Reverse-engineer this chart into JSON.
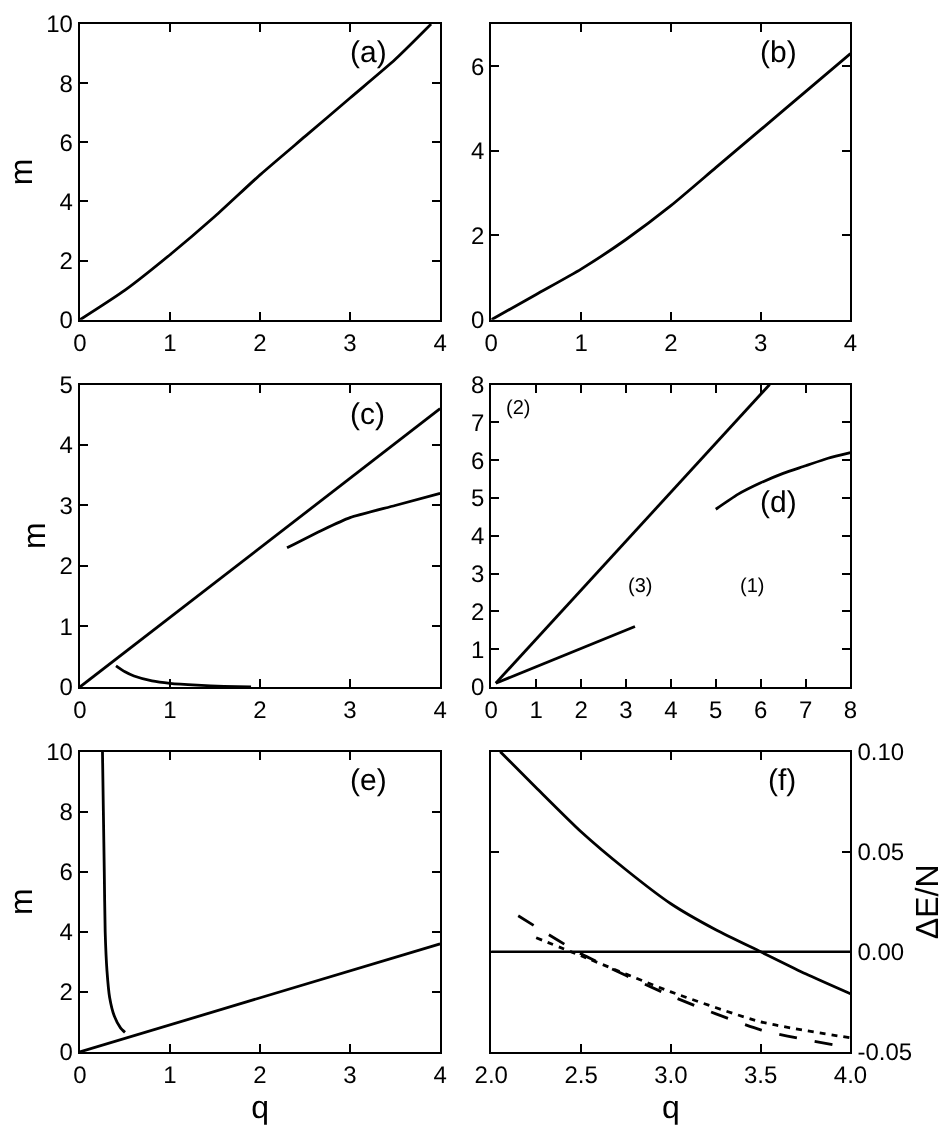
{
  "chart_data": [
    {
      "type": "line",
      "title": "(a)",
      "ylabel": "m",
      "xlim": [
        0,
        4
      ],
      "ylim": [
        0,
        10
      ],
      "xticks": [
        0,
        1,
        2,
        3,
        4
      ],
      "yticks": [
        0,
        2,
        4,
        6,
        8,
        10
      ],
      "marker": "none",
      "line_style": "solid",
      "series": [
        {
          "color": "#000000",
          "x": [
            0,
            0.5,
            1,
            1.5,
            2,
            2.5,
            3,
            3.5,
            3.9
          ],
          "values": [
            0,
            1,
            2.2,
            3.5,
            4.9,
            6.2,
            7.5,
            8.8,
            10
          ]
        }
      ]
    },
    {
      "type": "line",
      "title": "(b)",
      "xlim": [
        0,
        4
      ],
      "ylim": [
        0,
        7
      ],
      "xticks": [
        0,
        1,
        2,
        3,
        4
      ],
      "yticks": [
        0,
        2,
        4,
        6
      ],
      "marker": "none",
      "line_style": "solid",
      "series": [
        {
          "color": "#000000",
          "x": [
            0,
            0.5,
            1,
            1.5,
            2,
            2.5,
            3,
            3.5,
            4
          ],
          "values": [
            0,
            0.6,
            1.2,
            1.9,
            2.7,
            3.6,
            4.5,
            5.4,
            6.3
          ]
        }
      ]
    },
    {
      "type": "line",
      "title": "(c)",
      "ylabel": "m",
      "xlim": [
        0,
        4
      ],
      "ylim": [
        0,
        5
      ],
      "xticks": [
        0,
        1,
        2,
        3,
        4
      ],
      "yticks": [
        0,
        1,
        2,
        3,
        4,
        5
      ],
      "marker": "none",
      "line_style": "solid",
      "series": [
        {
          "color": "#000000",
          "x": [
            0,
            4
          ],
          "values": [
            0,
            4.6
          ]
        },
        {
          "color": "#000000",
          "x": [
            2.3,
            2.7,
            3,
            3.5,
            4
          ],
          "values": [
            2.3,
            2.6,
            2.8,
            3.0,
            3.2
          ]
        },
        {
          "color": "#000000",
          "x": [
            0.4,
            0.5,
            0.6,
            0.8,
            1,
            1.3,
            1.6,
            1.9
          ],
          "values": [
            0.35,
            0.25,
            0.18,
            0.1,
            0.06,
            0.03,
            0.01,
            0
          ]
        }
      ]
    },
    {
      "type": "line",
      "title": "(d)",
      "xlim": [
        0,
        8
      ],
      "ylim": [
        0,
        8
      ],
      "xticks": [
        0,
        1,
        2,
        3,
        4,
        5,
        6,
        7,
        8
      ],
      "yticks": [
        0,
        1,
        2,
        3,
        4,
        5,
        6,
        7,
        8
      ],
      "marker": "none",
      "line_style": "solid",
      "annotations": [
        "(2)",
        "(3)",
        "(1)"
      ],
      "series": [
        {
          "color": "#000000",
          "x": [
            0.1,
            6.2
          ],
          "values": [
            0.1,
            8
          ]
        },
        {
          "color": "#000000",
          "x": [
            5,
            5.5,
            6,
            6.5,
            7,
            7.5,
            8
          ],
          "values": [
            4.7,
            5.1,
            5.4,
            5.65,
            5.85,
            6.05,
            6.2
          ]
        },
        {
          "color": "#000000",
          "x": [
            0.1,
            3.2
          ],
          "values": [
            0.1,
            1.6
          ]
        }
      ]
    },
    {
      "type": "line",
      "title": "(e)",
      "xlabel": "q",
      "ylabel": "m",
      "xlim": [
        0,
        4
      ],
      "ylim": [
        0,
        10
      ],
      "xticks": [
        0,
        1,
        2,
        3,
        4
      ],
      "yticks": [
        0,
        2,
        4,
        6,
        8,
        10
      ],
      "marker": "none",
      "line_style": "solid",
      "series": [
        {
          "color": "#000000",
          "x": [
            0,
            4
          ],
          "values": [
            0,
            3.6
          ]
        },
        {
          "color": "#000000",
          "x": [
            0.25,
            0.26,
            0.27,
            0.28,
            0.3,
            0.33,
            0.38,
            0.45,
            0.5
          ],
          "values": [
            10,
            8,
            6,
            4,
            2.7,
            1.8,
            1.2,
            0.8,
            0.65
          ]
        }
      ]
    },
    {
      "type": "line",
      "title": "(f)",
      "xlabel": "q",
      "y2label": "ΔE/N",
      "xlim": [
        2.0,
        4.0
      ],
      "y2lim": [
        -0.05,
        0.1
      ],
      "xticks": [
        {
          "value": 2,
          "label": "2.0"
        },
        {
          "value": 2.5,
          "label": "2.5"
        },
        {
          "value": 3,
          "label": "3.0"
        },
        {
          "value": 3.5,
          "label": "3.5"
        },
        {
          "value": 4,
          "label": "4.0"
        }
      ],
      "y2ticks": [
        {
          "value": -0.05,
          "label": "-0.05"
        },
        {
          "value": 0,
          "label": "0.00"
        },
        {
          "value": 0.05,
          "label": "0.05"
        },
        {
          "value": 0.1,
          "label": "0.10"
        }
      ],
      "marker": "none",
      "ref_lines": [
        {
          "axis": "y2",
          "value": 0,
          "color": "#000000"
        }
      ],
      "series": [
        {
          "axis": "y2",
          "color": "#000000",
          "line_style": "solid",
          "x": [
            2.05,
            2.25,
            2.5,
            2.75,
            3,
            3.25,
            3.5,
            3.75,
            4
          ],
          "values": [
            0.1,
            0.082,
            0.06,
            0.041,
            0.024,
            0.011,
            0.0,
            -0.011,
            -0.021
          ]
        },
        {
          "axis": "y2",
          "color": "#000000",
          "line_style": "dashed",
          "x": [
            2.15,
            2.5,
            3,
            3.5,
            4
          ],
          "values": [
            0.018,
            -0.001,
            -0.022,
            -0.039,
            -0.048
          ]
        },
        {
          "axis": "y2",
          "color": "#000000",
          "line_style": "dotted",
          "x": [
            2.25,
            2.5,
            3,
            3.5,
            4
          ],
          "values": [
            0.007,
            -0.002,
            -0.02,
            -0.035,
            -0.043
          ]
        }
      ]
    }
  ]
}
